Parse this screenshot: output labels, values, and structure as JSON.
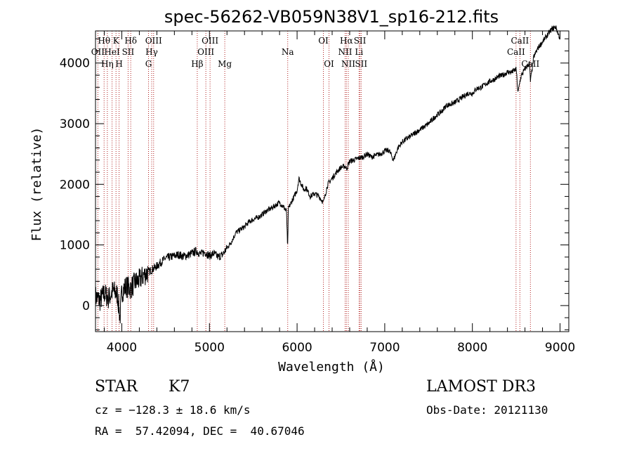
{
  "chart_data": {
    "type": "line",
    "title": "spec-56262-VB059N38V1_sp16-212.fits",
    "xlabel": "Wavelength (Å)",
    "ylabel": "Flux (relative)",
    "xlim": [
      3700,
      9100
    ],
    "ylim": [
      -430,
      4530
    ],
    "xticks": [
      4000,
      5000,
      6000,
      7000,
      8000,
      9000
    ],
    "yticks": [
      0,
      1000,
      2000,
      3000,
      4000
    ],
    "grid": false,
    "series": [
      {
        "name": "spectrum",
        "x": [
          3700,
          3750,
          3800,
          3850,
          3900,
          3950,
          3980,
          4000,
          4050,
          4100,
          4150,
          4200,
          4250,
          4300,
          4350,
          4400,
          4450,
          4500,
          4550,
          4600,
          4650,
          4700,
          4750,
          4800,
          4850,
          4900,
          4950,
          5000,
          5050,
          5100,
          5150,
          5200,
          5250,
          5300,
          5350,
          5400,
          5450,
          5500,
          5550,
          5600,
          5650,
          5700,
          5750,
          5800,
          5850,
          5880,
          5892,
          5900,
          5950,
          6000,
          6020,
          6050,
          6080,
          6100,
          6150,
          6200,
          6250,
          6300,
          6350,
          6400,
          6450,
          6500,
          6550,
          6563,
          6600,
          6650,
          6700,
          6750,
          6800,
          6850,
          6900,
          6950,
          7000,
          7050,
          7100,
          7150,
          7200,
          7250,
          7300,
          7350,
          7400,
          7450,
          7500,
          7550,
          7600,
          7650,
          7700,
          7750,
          7800,
          7850,
          7900,
          7950,
          8000,
          8050,
          8100,
          8150,
          8200,
          8250,
          8300,
          8350,
          8400,
          8450,
          8500,
          8520,
          8542,
          8560,
          8600,
          8650,
          8662,
          8700,
          8750,
          8800,
          8850,
          8900,
          8950,
          9000
        ],
        "y": [
          150,
          80,
          200,
          120,
          250,
          180,
          -200,
          230,
          320,
          280,
          380,
          420,
          500,
          550,
          600,
          650,
          720,
          780,
          800,
          820,
          840,
          810,
          830,
          860,
          900,
          850,
          880,
          820,
          860,
          800,
          840,
          950,
          1050,
          1200,
          1250,
          1300,
          1380,
          1420,
          1450,
          1500,
          1560,
          1600,
          1650,
          1700,
          1620,
          1550,
          900,
          1600,
          1750,
          1900,
          2100,
          2000,
          1900,
          1950,
          1800,
          1850,
          1800,
          1700,
          2000,
          2100,
          2200,
          2280,
          2300,
          2250,
          2380,
          2400,
          2430,
          2450,
          2500,
          2450,
          2480,
          2500,
          2550,
          2560,
          2400,
          2600,
          2700,
          2750,
          2800,
          2850,
          2900,
          2950,
          3000,
          3080,
          3150,
          3200,
          3300,
          3320,
          3350,
          3400,
          3450,
          3500,
          3500,
          3580,
          3600,
          3650,
          3700,
          3730,
          3780,
          3800,
          3850,
          3850,
          3900,
          3500,
          3700,
          3800,
          3900,
          4000,
          3700,
          4100,
          4250,
          4350,
          4450,
          4550,
          4600,
          4400
        ]
      }
    ],
    "spectral_lines": [
      {
        "label": "Hθ",
        "wavelength": 3798,
        "row": 0
      },
      {
        "label": "OII",
        "wavelength": 3727,
        "row": 1
      },
      {
        "label": "Hη",
        "wavelength": 3835,
        "row": 2
      },
      {
        "label": "HeI",
        "wavelength": 3889,
        "row": 1
      },
      {
        "label": "K",
        "wavelength": 3934,
        "row": 0
      },
      {
        "label": "H",
        "wavelength": 3969,
        "row": 2
      },
      {
        "label": "Hδ",
        "wavelength": 4102,
        "row": 0
      },
      {
        "label": "SII",
        "wavelength": 4072,
        "row": 1
      },
      {
        "label": "OIII",
        "wavelength": 4363,
        "row": 0
      },
      {
        "label": "Hγ",
        "wavelength": 4341,
        "row": 1
      },
      {
        "label": "G",
        "wavelength": 4305,
        "row": 2
      },
      {
        "label": "Hβ",
        "wavelength": 4861,
        "row": 2
      },
      {
        "label": "OIII",
        "wavelength": 5007,
        "row": 0
      },
      {
        "label": "OIII",
        "wavelength": 4959,
        "row": 1
      },
      {
        "label": "Mg",
        "wavelength": 5175,
        "row": 2
      },
      {
        "label": "Na",
        "wavelength": 5893,
        "row": 1
      },
      {
        "label": "OI",
        "wavelength": 6300,
        "row": 0
      },
      {
        "label": "OI",
        "wavelength": 6364,
        "row": 2
      },
      {
        "label": "Hα",
        "wavelength": 6563,
        "row": 0
      },
      {
        "label": "NII",
        "wavelength": 6548,
        "row": 1
      },
      {
        "label": "NII",
        "wavelength": 6584,
        "row": 2
      },
      {
        "label": "SII",
        "wavelength": 6717,
        "row": 0
      },
      {
        "label": "Li",
        "wavelength": 6707,
        "row": 1
      },
      {
        "label": "SII",
        "wavelength": 6731,
        "row": 2
      },
      {
        "label": "CaII",
        "wavelength": 8542,
        "row": 0
      },
      {
        "label": "CaII",
        "wavelength": 8498,
        "row": 1
      },
      {
        "label": "CaII",
        "wavelength": 8662,
        "row": 2
      }
    ]
  },
  "info": {
    "class": "STAR",
    "subclass": "K7",
    "survey": "LAMOST DR3",
    "cz": "cz = −128.3 ± 18.6 km/s",
    "obs_date": "Obs-Date: 20121130",
    "coords": "RA =  57.42094, DEC =  40.67046"
  },
  "colors": {
    "line_marker": "#b22222",
    "spectrum": "#000000",
    "axis": "#000000"
  }
}
